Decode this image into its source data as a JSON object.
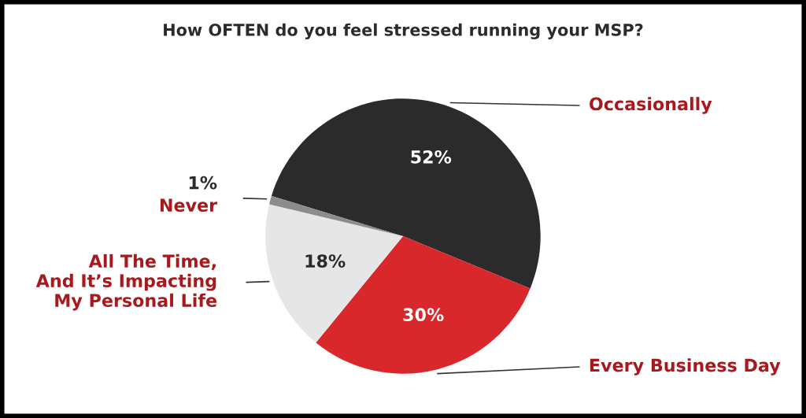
{
  "chart_data": {
    "type": "pie",
    "title": "How OFTEN do you feel stressed running your MSP?",
    "categories": [
      "Occasionally",
      "Every Business Day",
      "All The Time,\nAnd It’s Impacting\nMy Personal Life",
      "Never"
    ],
    "values": [
      52,
      30,
      18,
      1
    ],
    "colors": [
      "#2b2b2b",
      "#d8282c",
      "#e6e6e6",
      "#8c8c8c"
    ],
    "value_labels": [
      "52%",
      "30%",
      "18%",
      "1%"
    ]
  }
}
